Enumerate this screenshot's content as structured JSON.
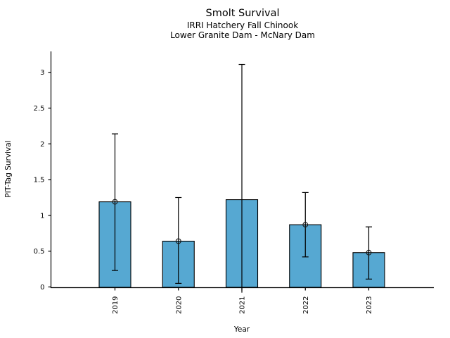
{
  "chart_data": {
    "type": "bar",
    "title": "Smolt Survival",
    "subtitle1": "IRRI Hatchery Fall Chinook",
    "subtitle2": "Lower Granite Dam - McNary Dam",
    "xlabel": "Year",
    "ylabel": "PIT-Tag Survival",
    "categories": [
      "2019",
      "2020",
      "2021",
      "2022",
      "2023"
    ],
    "values": [
      1.19,
      0.64,
      1.22,
      0.87,
      0.48
    ],
    "error_upper": [
      2.14,
      1.25,
      3.11,
      1.32,
      0.84
    ],
    "error_lower": [
      0.23,
      0.05,
      -0.08,
      0.42,
      0.11
    ],
    "error_lower_capped": [
      true,
      true,
      false,
      true,
      true
    ],
    "point_markers": [
      true,
      true,
      false,
      true,
      true
    ],
    "marker": "open-circle",
    "ytick_labels": [
      "0",
      "0.5",
      "1",
      "1.5",
      "2",
      "2.5",
      "3"
    ],
    "ytick_values": [
      0,
      0.5,
      1,
      1.5,
      2,
      2.5,
      3
    ],
    "ylim": [
      0,
      3.3
    ],
    "xtick_rotation": 90,
    "grid": false,
    "legend": "none",
    "bar_color": "#56a8d2",
    "bar_edge_color": "#000000",
    "axis_color": "#000000"
  }
}
